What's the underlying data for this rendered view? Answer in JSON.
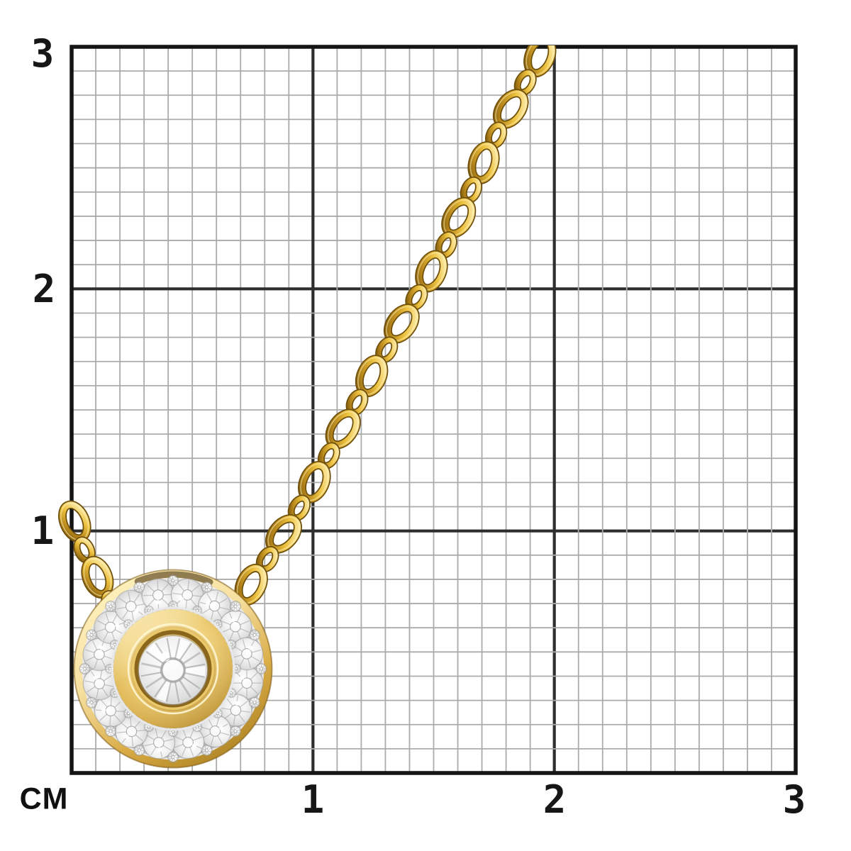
{
  "scene": {
    "title": "Gold halo diamond pendant necklace photographed on a centimeter measurement grid"
  },
  "grid": {
    "unit_label": "CM",
    "x_tick_labels": [
      "1",
      "2",
      "3"
    ],
    "y_tick_labels": [
      "3",
      "2",
      "1"
    ],
    "minor_divisions_per_cm": 10,
    "cm_span": 3,
    "colors": {
      "background": "#ffffff",
      "minor_line": "#ababab",
      "major_line": "#2e2e2e",
      "border_line": "#141414",
      "label": "#161616"
    }
  },
  "jewelry": {
    "halo_stone_count": 16,
    "colors": {
      "gold_highlight": "#fff3c0",
      "gold_light": "#f6e0a0",
      "gold_mid": "#e2b94e",
      "gold_deep": "#bb8c2a",
      "gold_dark": "#7d5a0e",
      "bezel_shadow": "#8a651c",
      "metal_white": "#f4f4f4",
      "metal_gray": "#9e9e9e",
      "diamond_white": "#ffffff",
      "diamond_gray": "#c6c6c6",
      "facet_gray": "#a0a0a0"
    }
  }
}
